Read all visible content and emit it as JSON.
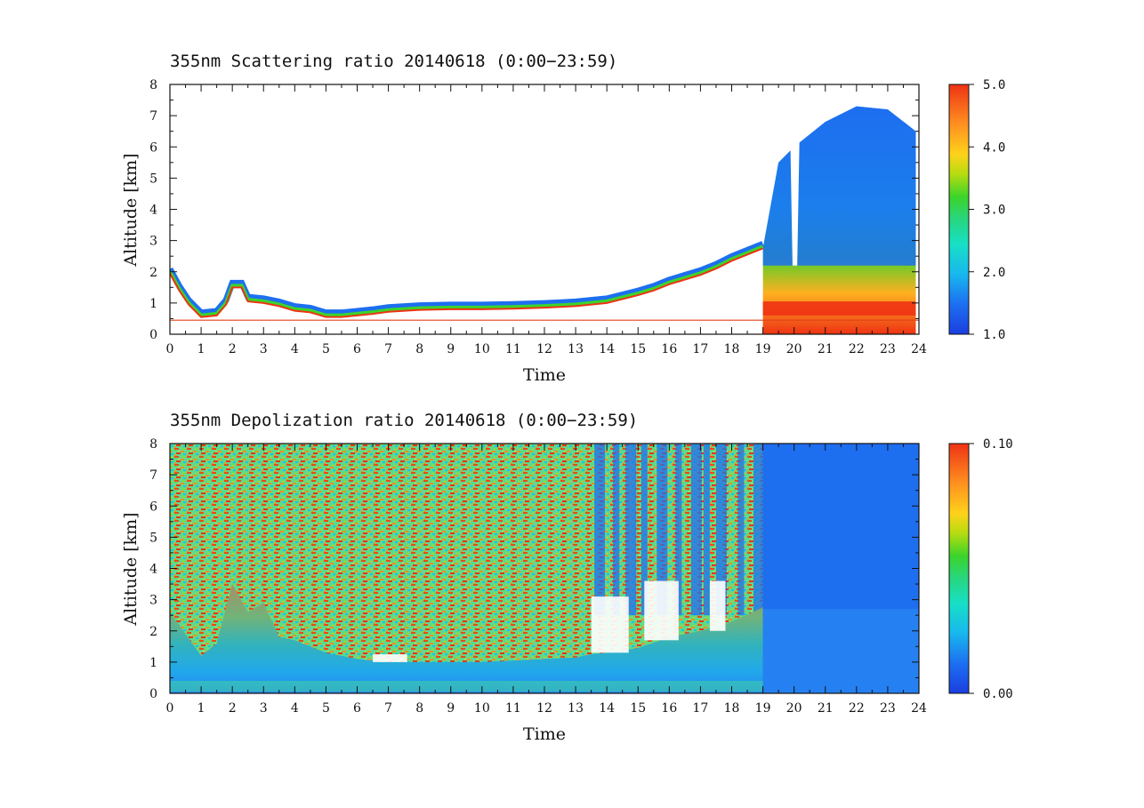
{
  "chart_data": [
    {
      "type": "heatmap",
      "title": "355nm Scattering ratio  20140618 (0:00−23:59)",
      "xlabel": "Time",
      "ylabel": "Altitude [km]",
      "xlim": [
        0,
        24
      ],
      "ylim": [
        0,
        8
      ],
      "xticks": [
        0,
        1,
        2,
        3,
        4,
        5,
        6,
        7,
        8,
        9,
        10,
        11,
        12,
        13,
        14,
        15,
        16,
        17,
        18,
        19,
        20,
        21,
        22,
        23,
        24
      ],
      "yticks": [
        0,
        1,
        2,
        3,
        4,
        5,
        6,
        7,
        8
      ],
      "colorbar": {
        "range": [
          1.0,
          5.0
        ],
        "ticks": [
          "1.0",
          "2.0",
          "3.0",
          "4.0",
          "5.0"
        ]
      },
      "features": {
        "reference_line_km": 0.45,
        "boundary_layer_top": [
          [
            0.0,
            1.95
          ],
          [
            0.3,
            1.4
          ],
          [
            0.6,
            0.95
          ],
          [
            1.0,
            0.55
          ],
          [
            1.5,
            0.6
          ],
          [
            1.8,
            0.95
          ],
          [
            2.0,
            1.5
          ],
          [
            2.3,
            1.5
          ],
          [
            2.5,
            1.05
          ],
          [
            3.0,
            1.0
          ],
          [
            3.5,
            0.9
          ],
          [
            4.0,
            0.75
          ],
          [
            4.5,
            0.7
          ],
          [
            5.0,
            0.55
          ],
          [
            5.5,
            0.55
          ],
          [
            6.0,
            0.6
          ],
          [
            6.5,
            0.65
          ],
          [
            7.0,
            0.72
          ],
          [
            8.0,
            0.78
          ],
          [
            9.0,
            0.8
          ],
          [
            10.0,
            0.8
          ],
          [
            11.0,
            0.82
          ],
          [
            12.0,
            0.85
          ],
          [
            13.0,
            0.9
          ],
          [
            14.0,
            1.0
          ],
          [
            15.0,
            1.25
          ],
          [
            15.5,
            1.4
          ],
          [
            16.0,
            1.6
          ],
          [
            16.5,
            1.75
          ],
          [
            17.0,
            1.9
          ],
          [
            17.5,
            2.1
          ],
          [
            18.0,
            2.35
          ],
          [
            18.5,
            2.55
          ],
          [
            19.0,
            2.75
          ]
        ],
        "aerosol_layer_top": [
          [
            19.0,
            2.75
          ],
          [
            19.5,
            5.5
          ],
          [
            20.0,
            6.0
          ],
          [
            21.0,
            6.8
          ],
          [
            22.0,
            7.3
          ],
          [
            23.0,
            7.2
          ],
          [
            23.9,
            6.5
          ]
        ]
      }
    },
    {
      "type": "heatmap",
      "title": "355nm Depolization ratio  20140618 (0:00−23:59)",
      "xlabel": "Time",
      "ylabel": "Altitude [km]",
      "xlim": [
        0,
        24
      ],
      "ylim": [
        0,
        8
      ],
      "xticks": [
        0,
        1,
        2,
        3,
        4,
        5,
        6,
        7,
        8,
        9,
        10,
        11,
        12,
        13,
        14,
        15,
        16,
        17,
        18,
        19,
        20,
        21,
        22,
        23,
        24
      ],
      "yticks": [
        0,
        1,
        2,
        3,
        4,
        5,
        6,
        7,
        8
      ],
      "colorbar": {
        "range": [
          0.0,
          0.1
        ],
        "ticks": [
          "0.00",
          "0.10"
        ]
      },
      "features": {
        "noisy_region_end_time": 19.0,
        "low_layer_top": [
          [
            0.0,
            2.6
          ],
          [
            0.5,
            1.9
          ],
          [
            1.0,
            1.2
          ],
          [
            1.5,
            1.6
          ],
          [
            2.0,
            3.5
          ],
          [
            2.5,
            2.6
          ],
          [
            3.0,
            2.9
          ],
          [
            3.5,
            1.8
          ],
          [
            4.0,
            1.7
          ],
          [
            5.0,
            1.3
          ],
          [
            6.0,
            1.1
          ],
          [
            7.0,
            1.0
          ],
          [
            8.0,
            1.0
          ],
          [
            9.0,
            1.0
          ],
          [
            10.0,
            1.0
          ],
          [
            11.0,
            1.05
          ],
          [
            12.0,
            1.1
          ],
          [
            13.0,
            1.15
          ],
          [
            13.5,
            1.25
          ],
          [
            14.0,
            1.3
          ],
          [
            15.0,
            1.45
          ],
          [
            16.0,
            1.8
          ],
          [
            17.0,
            2.0
          ],
          [
            18.0,
            2.3
          ],
          [
            19.0,
            2.75
          ]
        ]
      }
    }
  ]
}
